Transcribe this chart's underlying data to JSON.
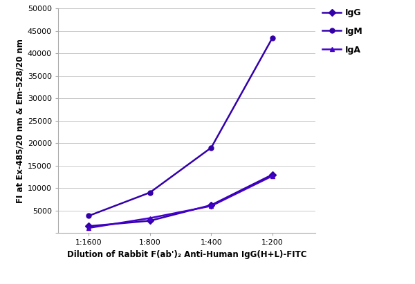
{
  "x_labels": [
    "1:1600",
    "1:800",
    "1:400",
    "1:200"
  ],
  "x_values": [
    1,
    2,
    3,
    4
  ],
  "series_order": [
    "IgG",
    "IgM",
    "IgA"
  ],
  "series": {
    "IgG": {
      "values": [
        1500,
        2700,
        6200,
        13000
      ],
      "color": "#3300AA",
      "marker": "D",
      "markersize": 5,
      "linewidth": 1.8,
      "label": "IgG"
    },
    "IgM": {
      "values": [
        3800,
        9000,
        19000,
        43500
      ],
      "color": "#3300AA",
      "marker": "o",
      "markersize": 5,
      "linewidth": 1.8,
      "label": "IgM"
    },
    "IgA": {
      "values": [
        1100,
        3300,
        6000,
        12700
      ],
      "color": "#4400CC",
      "marker": "^",
      "markersize": 5,
      "linewidth": 1.8,
      "label": "IgA"
    }
  },
  "ylabel": "FI at Ex-485/20 nm & Em-528/20 nm",
  "xlabel": "Dilution of Rabbit F(ab')₂ Anti-Human IgG(H+L)-FITC",
  "ylim": [
    0,
    50000
  ],
  "yticks": [
    0,
    5000,
    10000,
    15000,
    20000,
    25000,
    30000,
    35000,
    40000,
    45000,
    50000
  ],
  "ytick_labels": [
    "",
    "5000",
    "10000",
    "15000",
    "20000",
    "25000",
    "30000",
    "35000",
    "40000",
    "45000",
    "50000"
  ],
  "axis_label_fontsize": 8.5,
  "tick_fontsize": 8,
  "legend_fontsize": 9,
  "bg_color": "#FFFFFF",
  "plot_bg_color": "#FFFFFF",
  "grid_color": "#C8C8C8"
}
